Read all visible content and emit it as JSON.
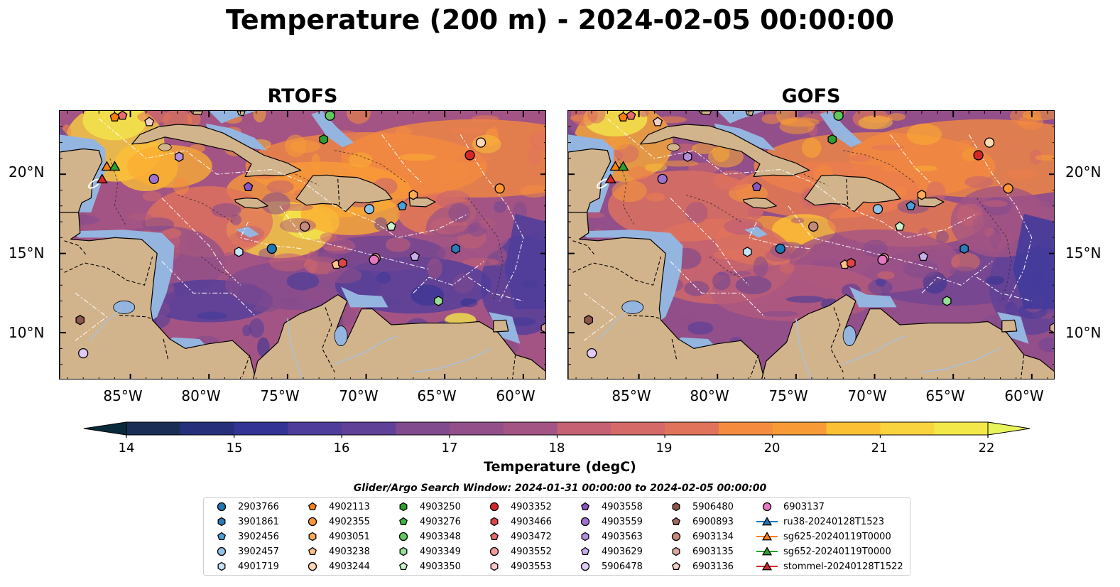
{
  "title": "Temperature (200 m) - 2024-02-05 00:00:00",
  "panels": [
    {
      "name": "RTOFS"
    },
    {
      "name": "GOFS"
    }
  ],
  "map": {
    "lat_ticks": [
      "20°N",
      "15°N",
      "10°N"
    ],
    "lon_ticks": [
      "85°W",
      "80°W",
      "75°W",
      "70°W",
      "65°W",
      "60°W"
    ],
    "extent": {
      "lon": [
        -89.5,
        -58.5
      ],
      "lat": [
        7.0,
        24.0
      ]
    },
    "colors": {
      "land": "#d2b48c",
      "shallow_water": "#94b5df",
      "deep": "#0c2a38"
    }
  },
  "colorbar": {
    "label": "Temperature (degC)",
    "ticks": [
      "14",
      "15",
      "16",
      "17",
      "18",
      "19",
      "20",
      "21",
      "22"
    ],
    "range": [
      14,
      22
    ],
    "colormap": "thermal",
    "colors": [
      "#082a3a",
      "#1a2e55",
      "#252f7a",
      "#323395",
      "#3e3a9c",
      "#4e3d9b",
      "#5f4197",
      "#704593",
      "#814a8e",
      "#924f89",
      "#a35484",
      "#b45a7c",
      "#c56173",
      "#d46968",
      "#e1735b",
      "#ec7e4d",
      "#f48b3f",
      "#f89b36",
      "#fbad32",
      "#fcc035",
      "#fad43f",
      "#f3e84a",
      "#e8f55a"
    ]
  },
  "search_window": "Glider/Argo Search Window: 2024-01-31 00:00:00 to 2024-02-05 00:00:00",
  "legend": [
    {
      "label": "2903766",
      "marker": "circle",
      "color": "#1f77b4"
    },
    {
      "label": "3901861",
      "marker": "hexagon",
      "color": "#2b7bba"
    },
    {
      "label": "3902456",
      "marker": "pentagon",
      "color": "#4a9fd8"
    },
    {
      "label": "3902457",
      "marker": "circle",
      "color": "#8ec4ea"
    },
    {
      "label": "4901719",
      "marker": "hexagon",
      "color": "#c6e4f7"
    },
    {
      "label": "4902113",
      "marker": "pentagon",
      "color": "#ff7f0e"
    },
    {
      "label": "4902355",
      "marker": "circle",
      "color": "#ff9632"
    },
    {
      "label": "4903051",
      "marker": "hexagon",
      "color": "#ffab57"
    },
    {
      "label": "4903238",
      "marker": "pentagon",
      "color": "#ffc18a"
    },
    {
      "label": "4903244",
      "marker": "circle",
      "color": "#ffd8b4"
    },
    {
      "label": "4903250",
      "marker": "hexagon",
      "color": "#2ca02c"
    },
    {
      "label": "4903276",
      "marker": "pentagon",
      "color": "#3fb23f"
    },
    {
      "label": "4903348",
      "marker": "circle",
      "color": "#5fc95f"
    },
    {
      "label": "4903349",
      "marker": "hexagon",
      "color": "#96e096"
    },
    {
      "label": "4903350",
      "marker": "pentagon",
      "color": "#c9f2c9"
    },
    {
      "label": "4903352",
      "marker": "circle",
      "color": "#d62728"
    },
    {
      "label": "4903466",
      "marker": "hexagon",
      "color": "#e04444"
    },
    {
      "label": "4903472",
      "marker": "pentagon",
      "color": "#e96a6a"
    },
    {
      "label": "4903552",
      "marker": "circle",
      "color": "#f29a9a"
    },
    {
      "label": "4903553",
      "marker": "hexagon",
      "color": "#fbc9c9"
    },
    {
      "label": "4903558",
      "marker": "pentagon",
      "color": "#8a55c2"
    },
    {
      "label": "4903559",
      "marker": "circle",
      "color": "#9f72d0"
    },
    {
      "label": "4903563",
      "marker": "hexagon",
      "color": "#b48fdc"
    },
    {
      "label": "4903629",
      "marker": "pentagon",
      "color": "#c9adea"
    },
    {
      "label": "5906478",
      "marker": "circle",
      "color": "#e0cbf6"
    },
    {
      "label": "5906480",
      "marker": "hexagon",
      "color": "#8c564b"
    },
    {
      "label": "6900893",
      "marker": "pentagon",
      "color": "#a06a5e"
    },
    {
      "label": "6903134",
      "marker": "circle",
      "color": "#c48a7d"
    },
    {
      "label": "6903135",
      "marker": "hexagon",
      "color": "#dba89a"
    },
    {
      "label": "6903136",
      "marker": "pentagon",
      "color": "#f3cfc4"
    },
    {
      "label": "6903137",
      "marker": "circle",
      "color": "#e377c2"
    },
    {
      "label": "ru38-20240128T1523",
      "marker": "triangle-line",
      "color": "#1f77b4"
    },
    {
      "label": "sg625-20240119T0000",
      "marker": "triangle-line",
      "color": "#ff7f0e"
    },
    {
      "label": "sg652-20240119T0000",
      "marker": "triangle-line",
      "color": "#2ca02c"
    },
    {
      "label": "stommel-20240128T1522",
      "marker": "triangle-line",
      "color": "#d62728"
    }
  ],
  "floats": [
    {
      "id": "2903766",
      "lon": -76.0,
      "lat": 15.3
    },
    {
      "id": "3901861",
      "lon": -64.3,
      "lat": 15.3
    },
    {
      "id": "3902456",
      "lon": -67.7,
      "lat": 18.0
    },
    {
      "id": "3902457",
      "lon": -69.8,
      "lat": 17.8
    },
    {
      "id": "4901719",
      "lon": -78.1,
      "lat": 15.1
    },
    {
      "id": "4902113",
      "lon": -86.0,
      "lat": 23.6
    },
    {
      "id": "4902355",
      "lon": -61.5,
      "lat": 19.1
    },
    {
      "id": "4903051",
      "lon": -67.0,
      "lat": 18.7
    },
    {
      "id": "4903238",
      "lon": -71.9,
      "lat": 14.3
    },
    {
      "id": "4903244",
      "lon": -62.7,
      "lat": 22.0
    },
    {
      "id": "4903250",
      "lon": -72.7,
      "lat": 22.2
    },
    {
      "id": "4903348",
      "lon": -72.3,
      "lat": 23.7
    },
    {
      "id": "4903349",
      "lon": -65.4,
      "lat": 12.0
    },
    {
      "id": "4903350",
      "lon": -68.4,
      "lat": 16.7
    },
    {
      "id": "4903352",
      "lon": -63.4,
      "lat": 21.2
    },
    {
      "id": "4903466",
      "lon": -71.5,
      "lat": 14.4
    },
    {
      "id": "4903472",
      "lon": -85.5,
      "lat": 23.7
    },
    {
      "id": "4903552",
      "lon": -69.4,
      "lat": 14.7
    },
    {
      "id": "4903558",
      "lon": -77.5,
      "lat": 19.2
    },
    {
      "id": "4903559",
      "lon": -83.5,
      "lat": 19.7
    },
    {
      "id": "4903563",
      "lon": -81.9,
      "lat": 21.1
    },
    {
      "id": "4903629",
      "lon": -66.9,
      "lat": 14.8
    },
    {
      "id": "5906478",
      "lon": -88.0,
      "lat": 8.7
    },
    {
      "id": "5906480",
      "lon": -88.2,
      "lat": 10.8
    },
    {
      "id": "6903134",
      "lon": -73.9,
      "lat": 16.7
    },
    {
      "id": "6903135",
      "lon": -58.6,
      "lat": 10.3
    },
    {
      "id": "6903136",
      "lon": -83.8,
      "lat": 23.3
    },
    {
      "id": "6903137",
      "lon": -69.5,
      "lat": 14.6
    }
  ],
  "gliders": [
    {
      "id": "sg625-20240119T0000",
      "lon": -86.5,
      "lat": 20.5
    },
    {
      "id": "sg652-20240119T0000",
      "lon": -86.0,
      "lat": 20.5
    },
    {
      "id": "stommel-20240128T1522",
      "lon": -86.8,
      "lat": 19.7
    }
  ]
}
